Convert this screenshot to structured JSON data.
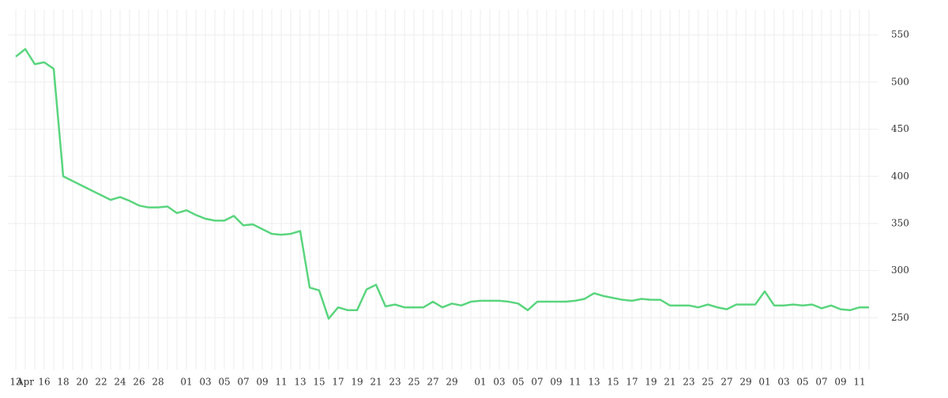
{
  "chart_data": {
    "type": "line",
    "categories": [
      "13",
      "Apr",
      null,
      "16",
      null,
      "18",
      null,
      "20",
      null,
      "22",
      null,
      "24",
      null,
      "26",
      null,
      "28",
      null,
      null,
      "01",
      null,
      "03",
      null,
      "05",
      null,
      "07",
      null,
      "09",
      null,
      "11",
      null,
      "13",
      null,
      "15",
      null,
      "17",
      null,
      "19",
      null,
      "21",
      null,
      "23",
      null,
      "25",
      null,
      "27",
      null,
      "29",
      null,
      null,
      "01",
      null,
      "03",
      null,
      "05",
      null,
      "07",
      null,
      "09",
      null,
      "11",
      null,
      "13",
      null,
      "15",
      null,
      "17",
      null,
      "19",
      null,
      "21",
      null,
      "23",
      null,
      "25",
      null,
      "27",
      null,
      "29",
      null,
      "01",
      null,
      "03",
      null,
      "05",
      null,
      "07",
      null,
      "09",
      null,
      "11",
      null
    ],
    "values": [
      527,
      535,
      519,
      521,
      514,
      400,
      395,
      390,
      385,
      380,
      375,
      378,
      374,
      369,
      367,
      367,
      368,
      361,
      364,
      359,
      355,
      353,
      353,
      358,
      348,
      349,
      344,
      339,
      338,
      339,
      342,
      282,
      279,
      249,
      261,
      258,
      258,
      280,
      285,
      262,
      264,
      261,
      261,
      261,
      267,
      261,
      265,
      263,
      267,
      268,
      268,
      268,
      267,
      265,
      258,
      267,
      267,
      267,
      267,
      268,
      270,
      276,
      273,
      271,
      269,
      268,
      270,
      269,
      269,
      263,
      263,
      263,
      261,
      264,
      261,
      259,
      264,
      264,
      264,
      278,
      263,
      263,
      264,
      263,
      264,
      260,
      263,
      259,
      258,
      261,
      261
    ],
    "color": "#5ad57e",
    "ylim": [
      195,
      577
    ],
    "yticks": [
      250,
      300,
      350,
      400,
      450,
      500,
      550
    ],
    "grid": true
  }
}
